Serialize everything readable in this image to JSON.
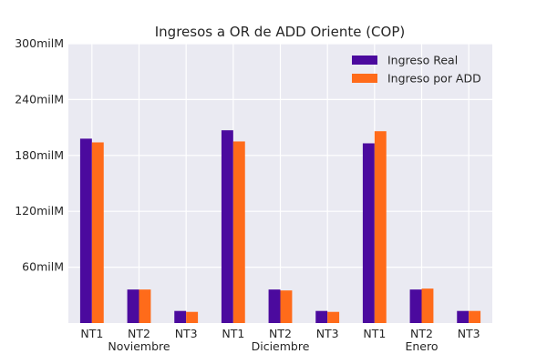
{
  "chart_data": {
    "type": "bar",
    "title": "Ingresos a OR de ADD Oriente (COP)",
    "xlabel": "",
    "ylabel": "",
    "ylim": [
      0,
      300
    ],
    "y_unit": "milM",
    "y_ticks": [
      {
        "value": 60,
        "label": "60milM"
      },
      {
        "value": 120,
        "label": "120milM"
      },
      {
        "value": 180,
        "label": "180milM"
      },
      {
        "value": 240,
        "label": "240milM"
      },
      {
        "value": 300,
        "label": "300milM"
      }
    ],
    "categories": [
      "NT1",
      "NT2",
      "NT3",
      "NT1",
      "NT2",
      "NT3",
      "NT1",
      "NT2",
      "NT3"
    ],
    "groups": [
      "Noviembre",
      "Diciembre",
      "Enero"
    ],
    "series": [
      {
        "name": "Ingreso Real",
        "color": "#4b0a9e",
        "values": [
          198,
          36,
          13,
          207,
          36,
          13,
          193,
          36,
          13
        ]
      },
      {
        "name": "Ingreso por ADD",
        "color": "#ff6b1a",
        "values": [
          194,
          36,
          12,
          195,
          35,
          12,
          206,
          37,
          13
        ]
      }
    ],
    "grid": true,
    "legend_position": "top-right",
    "background": "#eaeaf2"
  }
}
